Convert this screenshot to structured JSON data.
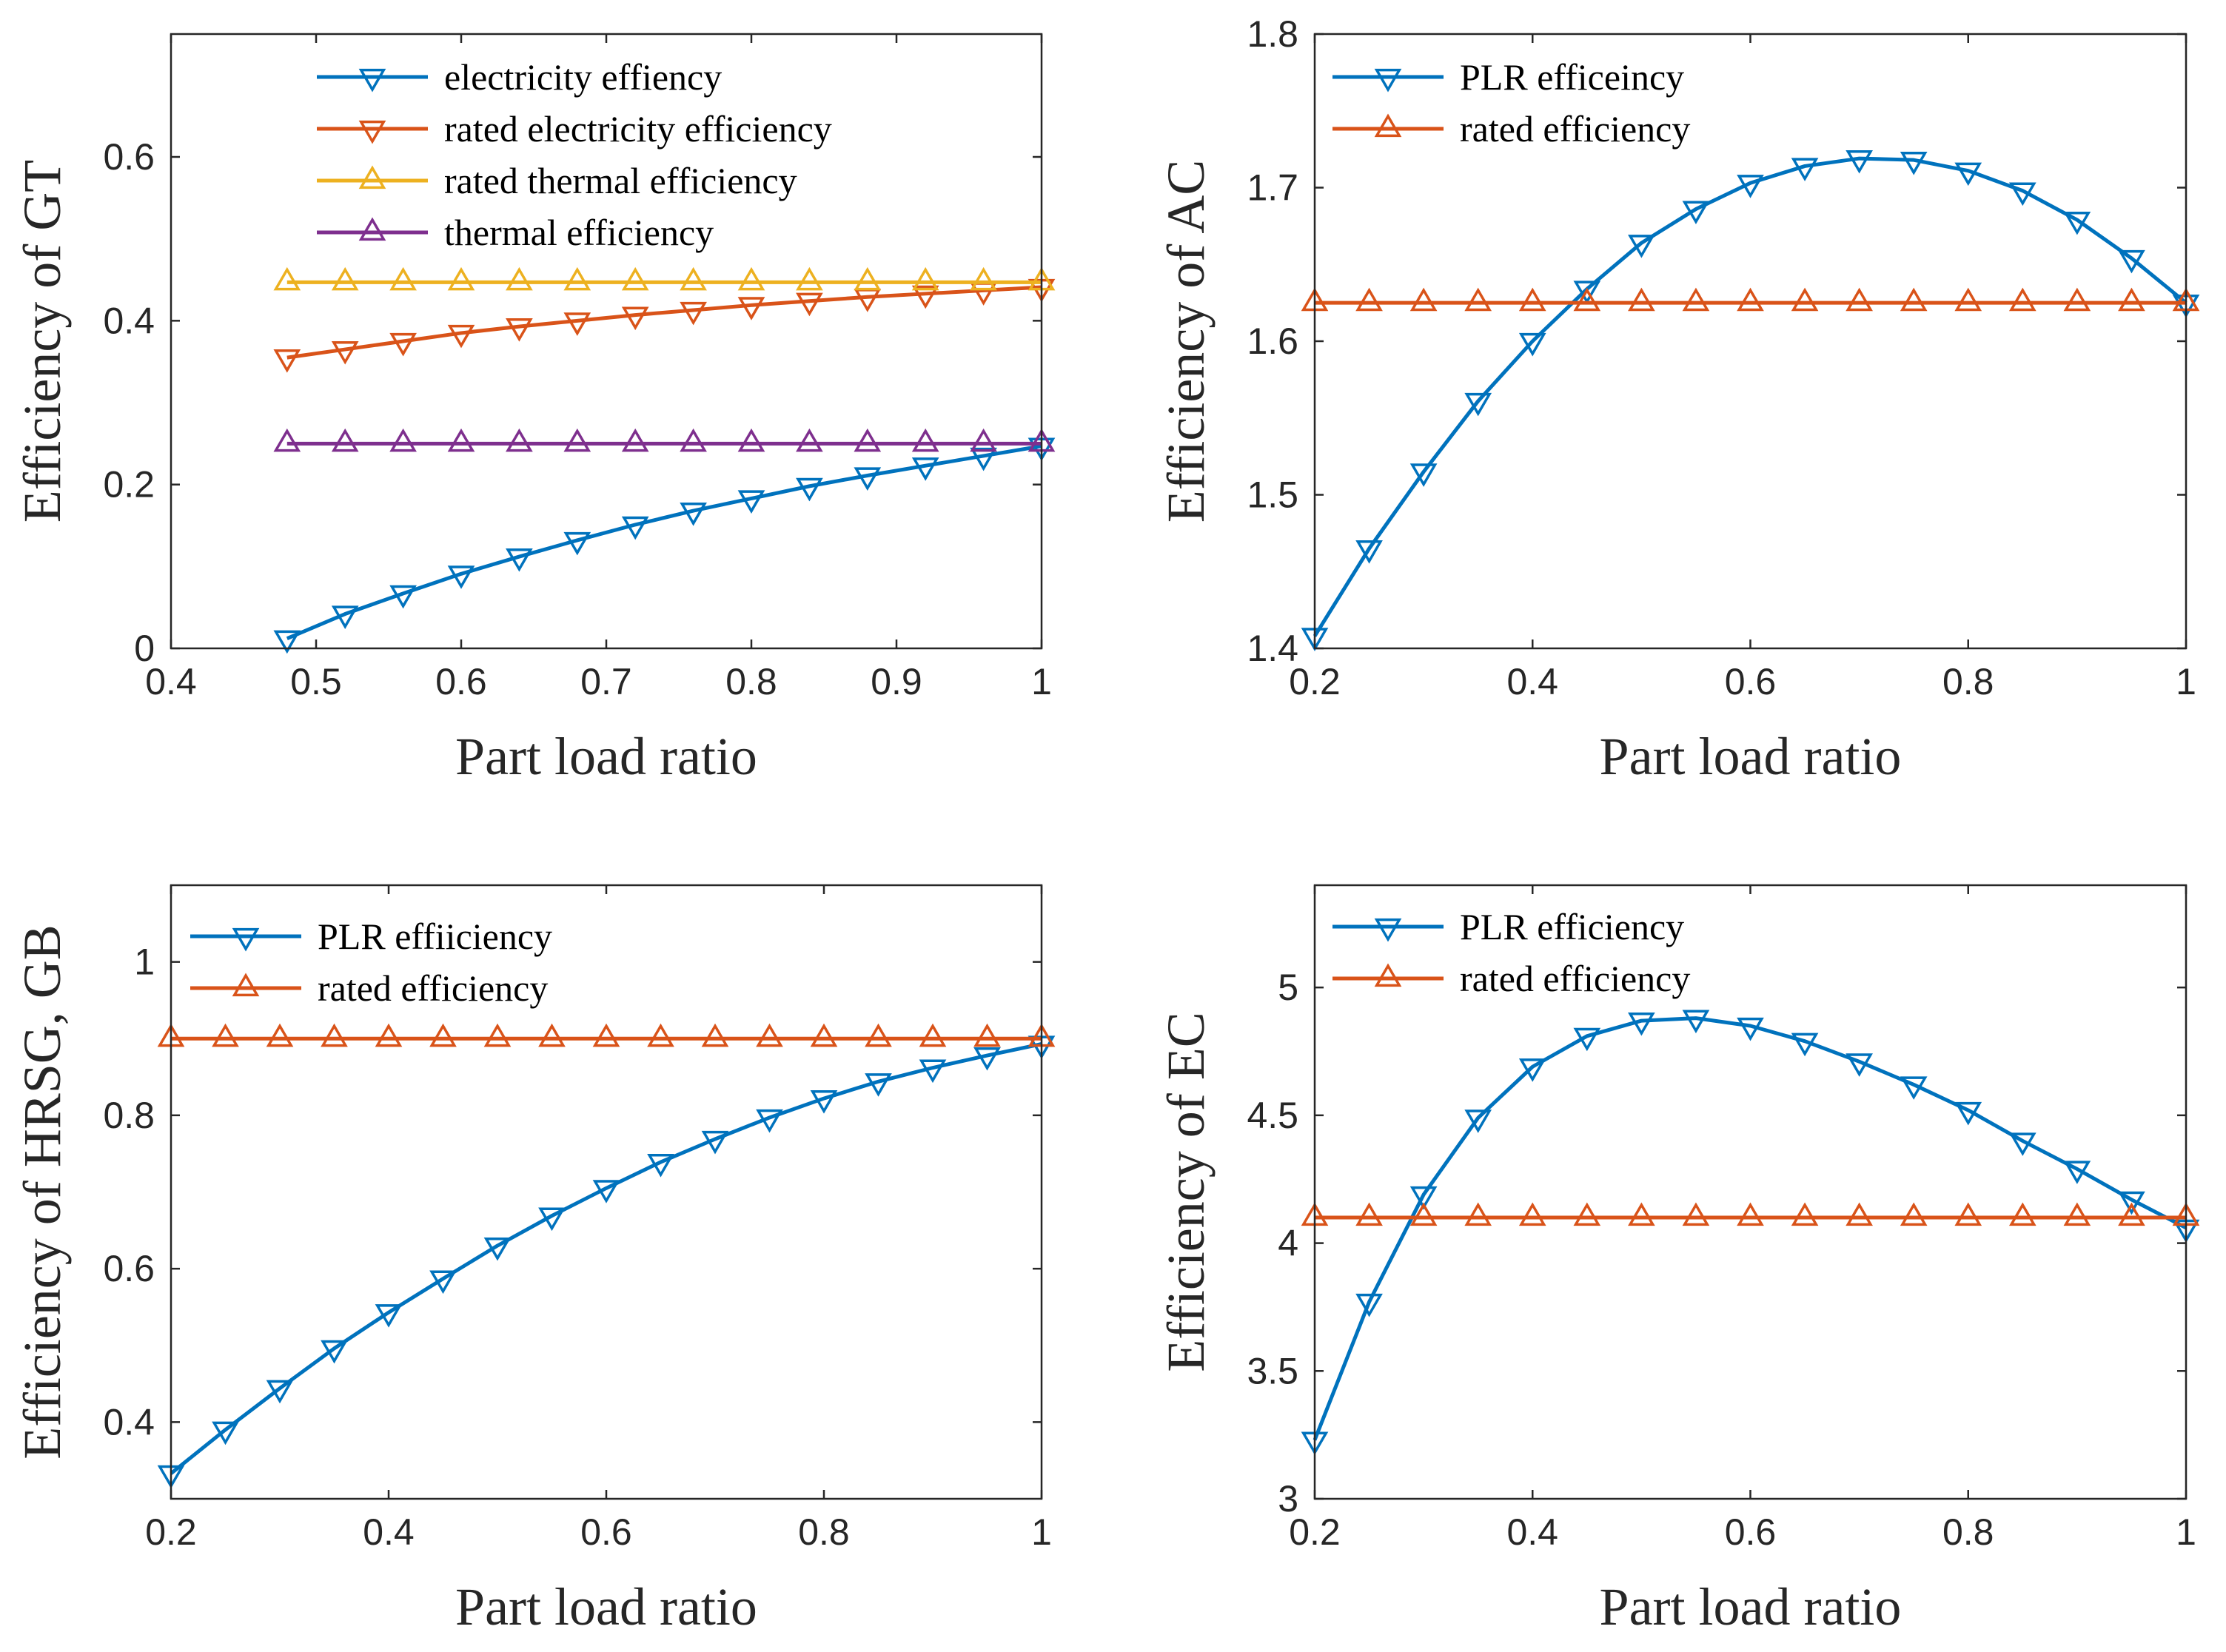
{
  "colors": {
    "blue": "#0072BD",
    "red": "#D95319",
    "yellow": "#EDB120",
    "purple": "#7E2F8E",
    "axis": "#262626",
    "background": "#ffffff"
  },
  "chart_data": [
    {
      "id": "gt",
      "type": "line",
      "xlabel": "Part load ratio",
      "ylabel": "Efficiency of GT",
      "xlim": [
        0.4,
        1
      ],
      "ylim": [
        0,
        0.75
      ],
      "xticks": [
        0.4,
        0.5,
        0.6,
        0.7,
        0.8,
        0.9,
        1
      ],
      "xtick_labels": [
        "0.4",
        "0.5",
        "0.6",
        "0.7",
        "0.8",
        "0.9",
        "1"
      ],
      "yticks": [
        0,
        0.2,
        0.4,
        0.6
      ],
      "ytick_labels": [
        "0",
        "0.2",
        "0.4",
        "0.6"
      ],
      "legend_position": "top",
      "series": [
        {
          "name": "electricity effiency",
          "color_key": "blue",
          "marker": "triangle-down",
          "x": [
            0.48,
            0.52,
            0.56,
            0.6,
            0.64,
            0.68,
            0.72,
            0.76,
            0.8,
            0.84,
            0.88,
            0.92,
            0.96,
            1.0
          ],
          "y": [
            0.012,
            0.042,
            0.067,
            0.091,
            0.112,
            0.132,
            0.151,
            0.168,
            0.183,
            0.198,
            0.211,
            0.223,
            0.235,
            0.247
          ]
        },
        {
          "name": "rated electricity efficiency",
          "color_key": "red",
          "marker": "triangle-down",
          "x": [
            0.48,
            0.52,
            0.56,
            0.6,
            0.64,
            0.68,
            0.72,
            0.76,
            0.8,
            0.84,
            0.88,
            0.92,
            0.96,
            1.0
          ],
          "y": [
            0.355,
            0.365,
            0.375,
            0.385,
            0.393,
            0.4,
            0.407,
            0.413,
            0.419,
            0.424,
            0.429,
            0.433,
            0.437,
            0.441
          ]
        },
        {
          "name": "rated thermal efficiency",
          "color_key": "yellow",
          "marker": "triangle-up",
          "x": [
            0.48,
            0.52,
            0.56,
            0.6,
            0.64,
            0.68,
            0.72,
            0.76,
            0.8,
            0.84,
            0.88,
            0.92,
            0.96,
            1.0
          ],
          "y": [
            0.447,
            0.447,
            0.447,
            0.447,
            0.447,
            0.447,
            0.447,
            0.447,
            0.447,
            0.447,
            0.447,
            0.447,
            0.447,
            0.447
          ]
        },
        {
          "name": "thermal efficiency",
          "color_key": "purple",
          "marker": "triangle-up",
          "x": [
            0.48,
            0.52,
            0.56,
            0.6,
            0.64,
            0.68,
            0.72,
            0.76,
            0.8,
            0.84,
            0.88,
            0.92,
            0.96,
            1.0
          ],
          "y": [
            0.25,
            0.25,
            0.25,
            0.25,
            0.25,
            0.25,
            0.25,
            0.25,
            0.25,
            0.25,
            0.25,
            0.25,
            0.25,
            0.25
          ]
        }
      ]
    },
    {
      "id": "ac",
      "type": "line",
      "xlabel": "Part load ratio",
      "ylabel": "Efficiency of AC",
      "xlim": [
        0.2,
        1
      ],
      "ylim": [
        1.4,
        1.8
      ],
      "xticks": [
        0.2,
        0.4,
        0.6,
        0.8,
        1
      ],
      "xtick_labels": [
        "0.2",
        "0.4",
        "0.6",
        "0.8",
        "1"
      ],
      "yticks": [
        1.4,
        1.5,
        1.6,
        1.7,
        1.8
      ],
      "ytick_labels": [
        "1.4",
        "1.5",
        "1.6",
        "1.7",
        "1.8"
      ],
      "legend_position": "top-left",
      "series": [
        {
          "name": "PLR efficeincy",
          "color_key": "blue",
          "marker": "triangle-down",
          "x": [
            0.2,
            0.25,
            0.3,
            0.35,
            0.4,
            0.45,
            0.5,
            0.55,
            0.6,
            0.65,
            0.7,
            0.75,
            0.8,
            0.85,
            0.9,
            0.95,
            1.0
          ],
          "y": [
            1.408,
            1.465,
            1.515,
            1.561,
            1.6,
            1.634,
            1.664,
            1.686,
            1.703,
            1.714,
            1.719,
            1.718,
            1.711,
            1.698,
            1.679,
            1.654,
            1.625
          ]
        },
        {
          "name": "rated efficiency",
          "color_key": "red",
          "marker": "triangle-up",
          "x": [
            0.2,
            0.25,
            0.3,
            0.35,
            0.4,
            0.45,
            0.5,
            0.55,
            0.6,
            0.65,
            0.7,
            0.75,
            0.8,
            0.85,
            0.9,
            0.95,
            1.0
          ],
          "y": [
            1.625,
            1.625,
            1.625,
            1.625,
            1.625,
            1.625,
            1.625,
            1.625,
            1.625,
            1.625,
            1.625,
            1.625,
            1.625,
            1.625,
            1.625,
            1.625,
            1.625
          ]
        }
      ]
    },
    {
      "id": "hrsg",
      "type": "line",
      "xlabel": "Part load ratio",
      "ylabel": "Efficiency of HRSG, GB",
      "xlim": [
        0.2,
        1
      ],
      "ylim": [
        0.3,
        1.1
      ],
      "xticks": [
        0.2,
        0.4,
        0.6,
        0.8,
        1
      ],
      "xtick_labels": [
        "0.2",
        "0.4",
        "0.6",
        "0.8",
        "1"
      ],
      "yticks": [
        0.4,
        0.6,
        0.8,
        1
      ],
      "ytick_labels": [
        "0.4",
        "0.6",
        "0.8",
        "1"
      ],
      "legend_position": "top-left",
      "series": [
        {
          "name": "PLR effiiciency",
          "color_key": "blue",
          "marker": "triangle-down",
          "x": [
            0.2,
            0.25,
            0.3,
            0.35,
            0.4,
            0.45,
            0.5,
            0.55,
            0.6,
            0.65,
            0.7,
            0.75,
            0.8,
            0.85,
            0.9,
            0.95,
            1.0
          ],
          "y": [
            0.333,
            0.39,
            0.444,
            0.496,
            0.543,
            0.587,
            0.63,
            0.669,
            0.705,
            0.739,
            0.769,
            0.797,
            0.822,
            0.844,
            0.862,
            0.878,
            0.893
          ]
        },
        {
          "name": "rated efficiency",
          "color_key": "red",
          "marker": "triangle-up",
          "x": [
            0.2,
            0.25,
            0.3,
            0.35,
            0.4,
            0.45,
            0.5,
            0.55,
            0.6,
            0.65,
            0.7,
            0.75,
            0.8,
            0.85,
            0.9,
            0.95,
            1.0
          ],
          "y": [
            0.9,
            0.9,
            0.9,
            0.9,
            0.9,
            0.9,
            0.9,
            0.9,
            0.9,
            0.9,
            0.9,
            0.9,
            0.9,
            0.9,
            0.9,
            0.9,
            0.9
          ]
        }
      ]
    },
    {
      "id": "ec",
      "type": "line",
      "xlabel": "Part load ratio",
      "ylabel": "Efficiency of EC",
      "xlim": [
        0.2,
        1
      ],
      "ylim": [
        3,
        5.4
      ],
      "xticks": [
        0.2,
        0.4,
        0.6,
        0.8,
        1
      ],
      "xtick_labels": [
        "0.2",
        "0.4",
        "0.6",
        "0.8",
        "1"
      ],
      "yticks": [
        3,
        3.5,
        4,
        4.5,
        5
      ],
      "ytick_labels": [
        "3",
        "3.5",
        "4",
        "4.5",
        "5"
      ],
      "legend_position": "top-left",
      "series": [
        {
          "name": "PLR efficiency",
          "color_key": "blue",
          "marker": "triangle-down",
          "x": [
            0.2,
            0.25,
            0.3,
            0.35,
            0.4,
            0.45,
            0.5,
            0.55,
            0.6,
            0.65,
            0.7,
            0.75,
            0.8,
            0.85,
            0.9,
            0.95,
            1.0
          ],
          "y": [
            3.23,
            3.77,
            4.19,
            4.49,
            4.69,
            4.81,
            4.87,
            4.88,
            4.85,
            4.79,
            4.71,
            4.62,
            4.52,
            4.4,
            4.29,
            4.17,
            4.06
          ]
        },
        {
          "name": "rated efficiency",
          "color_key": "red",
          "marker": "triangle-up",
          "x": [
            0.2,
            0.25,
            0.3,
            0.35,
            0.4,
            0.45,
            0.5,
            0.55,
            0.6,
            0.65,
            0.7,
            0.75,
            0.8,
            0.85,
            0.9,
            0.95,
            1.0
          ],
          "y": [
            4.1,
            4.1,
            4.1,
            4.1,
            4.1,
            4.1,
            4.1,
            4.1,
            4.1,
            4.1,
            4.1,
            4.1,
            4.1,
            4.1,
            4.1,
            4.1,
            4.1
          ]
        }
      ]
    }
  ]
}
